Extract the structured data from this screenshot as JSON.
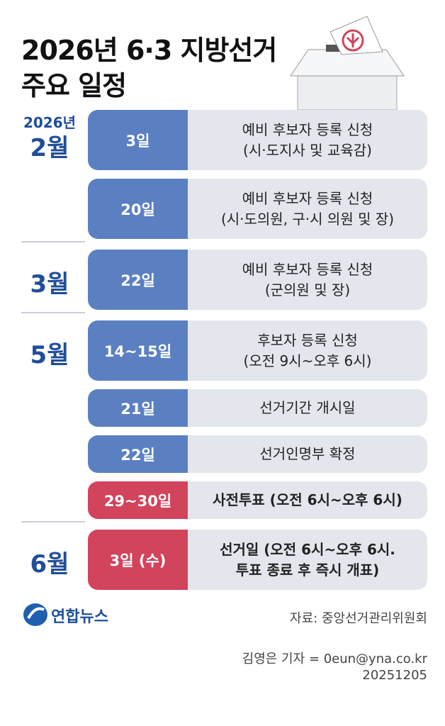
{
  "header": {
    "title_lines": [
      "2026년 6·3 지방선거",
      "주요 일정"
    ]
  },
  "schedule": {
    "rows": [
      {
        "year": "2026년",
        "month": "2월",
        "date": "3일",
        "lines": [
          "예비 후보자 등록 신청",
          "(시·도지사 및 교육감)"
        ],
        "color": "#5b80c2",
        "bold": false
      },
      {
        "date": "20일",
        "lines": [
          "예비 후보자 등록 신청",
          "(시·도의원, 구·시 의원 및 장)"
        ],
        "color": "#5b80c2",
        "bold": false
      },
      {
        "month": "3월",
        "date": "22일",
        "lines": [
          "예비 후보자 등록 신청",
          "(군의원 및 장)"
        ],
        "color": "#5b80c2",
        "bold": false
      },
      {
        "month": "5월",
        "date": "14~15일",
        "lines": [
          "후보자 등록 신청",
          "(오전 9시~오후 6시)"
        ],
        "color": "#5b80c2",
        "bold": false
      },
      {
        "date": "21일",
        "lines": [
          "선거기간 개시일"
        ],
        "color": "#5b80c2",
        "bold": false
      },
      {
        "date": "22일",
        "lines": [
          "선거인명부 확정"
        ],
        "color": "#5b80c2",
        "bold": false
      },
      {
        "date": "29~30일",
        "lines": [
          "사전투표 (오전 6시~오후 6시)"
        ],
        "color": "#d2435c",
        "bold": true
      },
      {
        "month": "6월",
        "date": "3일 (수)",
        "lines": [
          "선거일 (오전 6시~오후 6시.",
          "투표 종료 후 즉시 개표)"
        ],
        "color": "#d2435c",
        "bold": true
      }
    ]
  },
  "footer": {
    "logo": "연합뉴스",
    "source": "자료: 중앙선거관리위원회",
    "reporter": "김영은 기자 = 0eun@yna.co.kr",
    "date": "20251205"
  }
}
